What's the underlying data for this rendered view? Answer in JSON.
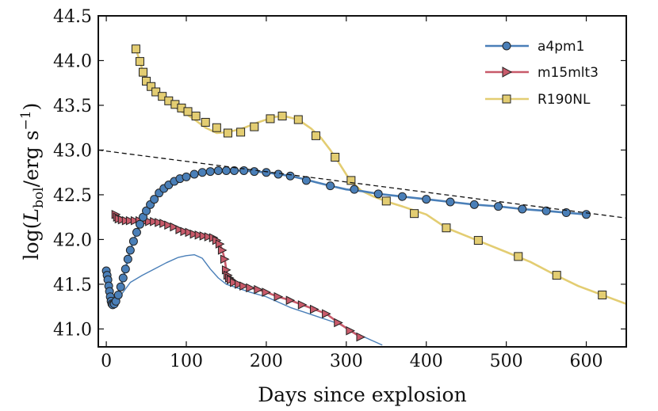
{
  "chart_data": {
    "type": "line",
    "xlabel": "Days since explosion",
    "ylabel": "log(L_bol / erg s^-1)",
    "ylabel_parts": {
      "pre": "log(",
      "L": "L",
      "sub": "bol",
      "mid": "/erg s",
      "sup": "−1",
      "post": ")"
    },
    "xlim": [
      -10,
      650
    ],
    "ylim": [
      40.8,
      44.5
    ],
    "xticks": [
      0,
      100,
      200,
      300,
      400,
      500,
      600
    ],
    "yticks": [
      41.0,
      41.5,
      42.0,
      42.5,
      43.0,
      43.5,
      44.0,
      44.5
    ],
    "xtick_labels": [
      "0",
      "100",
      "200",
      "300",
      "400",
      "500",
      "600"
    ],
    "ytick_labels": [
      "41.0",
      "41.5",
      "42.0",
      "42.5",
      "43.0",
      "43.5",
      "44.0",
      "44.5"
    ],
    "legend_position": "top-right",
    "series": [
      {
        "name": "a4pm1",
        "color": "#4a7fb8",
        "marker": "circle",
        "points": [
          [
            0,
            41.65
          ],
          [
            1,
            41.6
          ],
          [
            2,
            41.55
          ],
          [
            3,
            41.48
          ],
          [
            4,
            41.42
          ],
          [
            5,
            41.36
          ],
          [
            6,
            41.31
          ],
          [
            7,
            41.28
          ],
          [
            8,
            41.27
          ],
          [
            10,
            41.28
          ],
          [
            12,
            41.31
          ],
          [
            15,
            41.38
          ],
          [
            18,
            41.47
          ],
          [
            21,
            41.57
          ],
          [
            24,
            41.67
          ],
          [
            27,
            41.78
          ],
          [
            30,
            41.88
          ],
          [
            34,
            41.98
          ],
          [
            38,
            42.08
          ],
          [
            42,
            42.17
          ],
          [
            46,
            42.25
          ],
          [
            50,
            42.32
          ],
          [
            55,
            42.39
          ],
          [
            60,
            42.45
          ],
          [
            66,
            42.52
          ],
          [
            72,
            42.57
          ],
          [
            78,
            42.61
          ],
          [
            85,
            42.65
          ],
          [
            92,
            42.68
          ],
          [
            100,
            42.7
          ],
          [
            110,
            42.73
          ],
          [
            120,
            42.75
          ],
          [
            130,
            42.76
          ],
          [
            140,
            42.77
          ],
          [
            150,
            42.77
          ],
          [
            160,
            42.77
          ],
          [
            172,
            42.77
          ],
          [
            185,
            42.76
          ],
          [
            200,
            42.75
          ],
          [
            215,
            42.73
          ],
          [
            230,
            42.71
          ],
          [
            245,
            42.68
          ],
          [
            262,
            42.64
          ],
          [
            280,
            42.6
          ],
          [
            300,
            42.56
          ],
          [
            320,
            42.54
          ],
          [
            340,
            42.51
          ],
          [
            370,
            42.48
          ],
          [
            400,
            42.45
          ],
          [
            430,
            42.42
          ],
          [
            460,
            42.39
          ],
          [
            490,
            42.37
          ],
          [
            520,
            42.34
          ],
          [
            550,
            42.32
          ],
          [
            575,
            42.3
          ],
          [
            600,
            42.28
          ]
        ],
        "marker_points": [
          [
            0,
            41.65
          ],
          [
            1,
            41.6
          ],
          [
            2,
            41.55
          ],
          [
            3,
            41.48
          ],
          [
            4,
            41.42
          ],
          [
            5,
            41.36
          ],
          [
            6,
            41.31
          ],
          [
            7,
            41.28
          ],
          [
            8,
            41.27
          ],
          [
            10,
            41.28
          ],
          [
            12,
            41.31
          ],
          [
            15,
            41.38
          ],
          [
            18,
            41.47
          ],
          [
            21,
            41.57
          ],
          [
            24,
            41.67
          ],
          [
            27,
            41.78
          ],
          [
            30,
            41.88
          ],
          [
            34,
            41.98
          ],
          [
            38,
            42.08
          ],
          [
            42,
            42.17
          ],
          [
            46,
            42.25
          ],
          [
            50,
            42.32
          ],
          [
            55,
            42.39
          ],
          [
            60,
            42.45
          ],
          [
            66,
            42.52
          ],
          [
            72,
            42.57
          ],
          [
            78,
            42.61
          ],
          [
            85,
            42.65
          ],
          [
            92,
            42.68
          ],
          [
            100,
            42.7
          ],
          [
            110,
            42.73
          ],
          [
            120,
            42.75
          ],
          [
            130,
            42.76
          ],
          [
            140,
            42.77
          ],
          [
            150,
            42.77
          ],
          [
            160,
            42.77
          ],
          [
            172,
            42.77
          ],
          [
            185,
            42.76
          ],
          [
            200,
            42.75
          ],
          [
            215,
            42.73
          ],
          [
            230,
            42.71
          ],
          [
            250,
            42.66
          ],
          [
            280,
            42.6
          ],
          [
            310,
            42.56
          ],
          [
            340,
            42.51
          ],
          [
            370,
            42.48
          ],
          [
            400,
            42.45
          ],
          [
            430,
            42.42
          ],
          [
            460,
            42.39
          ],
          [
            490,
            42.37
          ],
          [
            520,
            42.34
          ],
          [
            550,
            42.32
          ],
          [
            575,
            42.3
          ],
          [
            600,
            42.28
          ]
        ]
      },
      {
        "name": "m15mlt3",
        "color": "#c85a6a",
        "marker": "triangle-right",
        "points": [
          [
            12,
            42.28
          ],
          [
            14,
            42.25
          ],
          [
            16,
            42.23
          ],
          [
            20,
            42.22
          ],
          [
            25,
            42.21
          ],
          [
            30,
            42.21
          ],
          [
            36,
            42.21
          ],
          [
            42,
            42.21
          ],
          [
            48,
            42.2
          ],
          [
            54,
            42.2
          ],
          [
            60,
            42.2
          ],
          [
            66,
            42.19
          ],
          [
            72,
            42.18
          ],
          [
            78,
            42.16
          ],
          [
            85,
            42.14
          ],
          [
            92,
            42.11
          ],
          [
            98,
            42.09
          ],
          [
            104,
            42.08
          ],
          [
            110,
            42.06
          ],
          [
            116,
            42.05
          ],
          [
            122,
            42.04
          ],
          [
            128,
            42.03
          ],
          [
            134,
            42.02
          ],
          [
            138,
            41.99
          ],
          [
            142,
            41.95
          ],
          [
            145,
            41.88
          ],
          [
            148,
            41.78
          ],
          [
            150,
            41.66
          ],
          [
            152,
            41.6
          ],
          [
            154,
            41.57
          ],
          [
            156,
            41.55
          ],
          [
            160,
            41.52
          ],
          [
            166,
            41.5
          ],
          [
            172,
            41.48
          ],
          [
            180,
            41.46
          ],
          [
            190,
            41.44
          ],
          [
            200,
            41.41
          ],
          [
            215,
            41.36
          ],
          [
            230,
            41.32
          ],
          [
            245,
            41.27
          ],
          [
            260,
            41.22
          ],
          [
            275,
            41.17
          ],
          [
            290,
            41.07
          ],
          [
            305,
            40.98
          ],
          [
            318,
            40.91
          ]
        ],
        "marker_points": [
          [
            12,
            42.28
          ],
          [
            14,
            42.25
          ],
          [
            16,
            42.23
          ],
          [
            20,
            42.22
          ],
          [
            25,
            42.21
          ],
          [
            30,
            42.21
          ],
          [
            36,
            42.21
          ],
          [
            42,
            42.21
          ],
          [
            48,
            42.2
          ],
          [
            54,
            42.2
          ],
          [
            60,
            42.2
          ],
          [
            66,
            42.19
          ],
          [
            72,
            42.18
          ],
          [
            78,
            42.16
          ],
          [
            85,
            42.14
          ],
          [
            92,
            42.11
          ],
          [
            98,
            42.09
          ],
          [
            104,
            42.08
          ],
          [
            110,
            42.06
          ],
          [
            116,
            42.05
          ],
          [
            122,
            42.04
          ],
          [
            128,
            42.03
          ],
          [
            134,
            42.02
          ],
          [
            138,
            41.99
          ],
          [
            142,
            41.95
          ],
          [
            145,
            41.88
          ],
          [
            148,
            41.78
          ],
          [
            150,
            41.66
          ],
          [
            152,
            41.6
          ],
          [
            154,
            41.57
          ],
          [
            156,
            41.55
          ],
          [
            160,
            41.52
          ],
          [
            166,
            41.5
          ],
          [
            172,
            41.48
          ],
          [
            180,
            41.46
          ],
          [
            190,
            41.44
          ],
          [
            200,
            41.41
          ],
          [
            215,
            41.36
          ],
          [
            230,
            41.32
          ],
          [
            245,
            41.27
          ],
          [
            260,
            41.22
          ],
          [
            275,
            41.17
          ],
          [
            290,
            41.07
          ],
          [
            305,
            40.98
          ],
          [
            318,
            40.91
          ]
        ]
      },
      {
        "name": "R190NL",
        "color": "#e3cd72",
        "marker": "square",
        "points": [
          [
            37,
            44.13
          ],
          [
            42,
            43.99
          ],
          [
            46,
            43.87
          ],
          [
            50,
            43.77
          ],
          [
            56,
            43.71
          ],
          [
            62,
            43.65
          ],
          [
            70,
            43.58
          ],
          [
            78,
            43.53
          ],
          [
            86,
            43.48
          ],
          [
            94,
            43.43
          ],
          [
            102,
            43.39
          ],
          [
            112,
            43.33
          ],
          [
            124,
            43.25
          ],
          [
            138,
            43.19
          ],
          [
            152,
            43.2
          ],
          [
            170,
            43.24
          ],
          [
            190,
            43.31
          ],
          [
            210,
            43.37
          ],
          [
            222,
            43.38
          ],
          [
            240,
            43.34
          ],
          [
            256,
            43.24
          ],
          [
            268,
            43.14
          ],
          [
            280,
            43.0
          ],
          [
            292,
            42.84
          ],
          [
            304,
            42.67
          ],
          [
            318,
            42.55
          ],
          [
            334,
            42.48
          ],
          [
            352,
            42.42
          ],
          [
            370,
            42.37
          ],
          [
            400,
            42.28
          ],
          [
            425,
            42.13
          ],
          [
            450,
            42.04
          ],
          [
            475,
            41.95
          ],
          [
            500,
            41.86
          ],
          [
            530,
            41.75
          ],
          [
            560,
            41.61
          ],
          [
            590,
            41.48
          ],
          [
            620,
            41.38
          ],
          [
            650,
            41.28
          ]
        ],
        "marker_points": [
          [
            37,
            44.13
          ],
          [
            42,
            43.99
          ],
          [
            46,
            43.87
          ],
          [
            50,
            43.77
          ],
          [
            56,
            43.71
          ],
          [
            62,
            43.65
          ],
          [
            70,
            43.6
          ],
          [
            78,
            43.55
          ],
          [
            86,
            43.51
          ],
          [
            94,
            43.47
          ],
          [
            102,
            43.43
          ],
          [
            112,
            43.38
          ],
          [
            124,
            43.31
          ],
          [
            138,
            43.25
          ],
          [
            152,
            43.19
          ],
          [
            168,
            43.2
          ],
          [
            185,
            43.26
          ],
          [
            205,
            43.35
          ],
          [
            220,
            43.38
          ],
          [
            240,
            43.34
          ],
          [
            262,
            43.16
          ],
          [
            286,
            42.92
          ],
          [
            306,
            42.66
          ],
          [
            350,
            42.43
          ],
          [
            385,
            42.29
          ],
          [
            425,
            42.13
          ],
          [
            465,
            41.99
          ],
          [
            515,
            41.81
          ],
          [
            563,
            41.6
          ],
          [
            620,
            41.38
          ]
        ]
      },
      {
        "name": "unlabeled thin line",
        "color": "#4a7fb8",
        "marker": "none",
        "points": [
          [
            8,
            41.27
          ],
          [
            12,
            41.3
          ],
          [
            20,
            41.4
          ],
          [
            30,
            41.52
          ],
          [
            45,
            41.6
          ],
          [
            60,
            41.67
          ],
          [
            75,
            41.74
          ],
          [
            90,
            41.8
          ],
          [
            100,
            41.82
          ],
          [
            110,
            41.83
          ],
          [
            120,
            41.79
          ],
          [
            130,
            41.67
          ],
          [
            140,
            41.57
          ],
          [
            150,
            41.5
          ],
          [
            160,
            41.47
          ],
          [
            180,
            41.41
          ],
          [
            200,
            41.36
          ],
          [
            230,
            41.24
          ],
          [
            260,
            41.15
          ],
          [
            290,
            41.06
          ],
          [
            310,
            40.96
          ],
          [
            330,
            40.88
          ],
          [
            345,
            40.82
          ]
        ]
      },
      {
        "name": "dashed reference line",
        "color": "#111111",
        "marker": "none",
        "dashed": true,
        "points": [
          [
            -10,
            43.0
          ],
          [
            650,
            42.24
          ]
        ]
      }
    ]
  }
}
